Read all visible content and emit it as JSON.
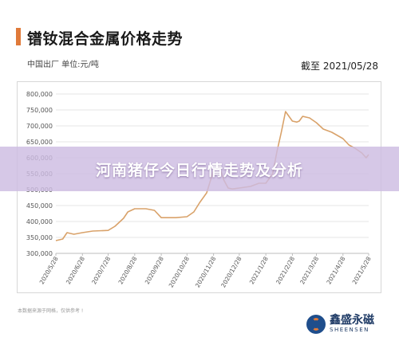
{
  "header": {
    "title": "镨钕混合金属价格走势",
    "subtitle": "中国出厂  单位:元/吨",
    "cutoff": "截至 2021/05/28"
  },
  "banner": {
    "text": "河南猪仔今日行情走势及分析"
  },
  "footnote": "本数据来源于网格，仅供参考 !",
  "logo": {
    "name_cn": "鑫盛永磁",
    "name_en": "SHEENSEN"
  },
  "colors": {
    "accent": "#e07a3a",
    "line": "#d9a26a",
    "banner": "#cdbce2",
    "brand": "#1f4e8c"
  },
  "chart_data": {
    "type": "line",
    "title": "镨钕混合金属价格走势",
    "xlabel": "",
    "ylabel": "",
    "ylim": [
      300000,
      800000
    ],
    "yticks": [
      300000,
      350000,
      400000,
      450000,
      500000,
      550000,
      600000,
      650000,
      700000,
      750000,
      800000
    ],
    "ytick_labels": [
      "300,000",
      "350,000",
      "400,000",
      "450,000",
      "500,000",
      "550,000",
      "600,000",
      "650,000",
      "700,000",
      "750,000",
      "800,000"
    ],
    "xtick_labels": [
      "2020/5/28",
      "2020/6/28",
      "2020/7/28",
      "2020/8/28",
      "2020/9/28",
      "2020/10/28",
      "2020/11/28",
      "2020/12/28",
      "2021/1/28",
      "2021/2/28",
      "2021/3/28",
      "2021/4/28",
      "2021/5/28"
    ],
    "grid": true,
    "series": [
      {
        "color": "#d9a26a",
        "x": [
          "2020/5/28",
          "2020/6/5",
          "2020/6/10",
          "2020/6/18",
          "2020/6/28",
          "2020/7/10",
          "2020/7/28",
          "2020/8/5",
          "2020/8/15",
          "2020/8/20",
          "2020/8/28",
          "2020/9/10",
          "2020/9/20",
          "2020/9/28",
          "2020/10/15",
          "2020/10/28",
          "2020/11/5",
          "2020/11/12",
          "2020/11/20",
          "2020/11/28",
          "2020/12/5",
          "2020/12/10",
          "2020/12/15",
          "2020/12/20",
          "2020/12/28",
          "2021/1/10",
          "2021/1/20",
          "2021/1/28",
          "2021/2/5",
          "2021/2/10",
          "2021/2/15",
          "2021/2/20",
          "2021/2/28",
          "2021/3/5",
          "2021/3/8",
          "2021/3/12",
          "2021/3/20",
          "2021/3/28",
          "2021/4/5",
          "2021/4/15",
          "2021/4/28",
          "2021/5/5",
          "2021/5/12",
          "2021/5/20",
          "2021/5/25",
          "2021/5/28"
        ],
        "y": [
          340000,
          345000,
          365000,
          360000,
          365000,
          370000,
          372000,
          385000,
          410000,
          430000,
          440000,
          440000,
          435000,
          412000,
          412000,
          415000,
          430000,
          460000,
          490000,
          560000,
          570000,
          530000,
          505000,
          502000,
          505000,
          510000,
          520000,
          520000,
          550000,
          620000,
          680000,
          745000,
          715000,
          712000,
          715000,
          730000,
          725000,
          710000,
          690000,
          680000,
          660000,
          640000,
          630000,
          615000,
          600000,
          610000
        ]
      }
    ]
  }
}
